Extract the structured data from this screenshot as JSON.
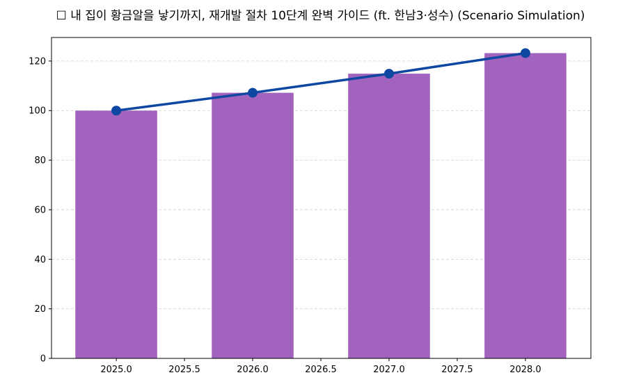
{
  "chart_data": {
    "type": "bar",
    "title": "☐ 내 집이 황금알을 낳기까지, 재개발 절차 10단계 완벽 가이드 (ft. 한남3·성수) (Scenario Simulation)",
    "xlabel": "",
    "ylabel": "",
    "x": [
      2025,
      2026,
      2027,
      2028
    ],
    "series": [
      {
        "type": "bar",
        "values": [
          100,
          107.2,
          114.9,
          123.2
        ],
        "color": "#a163bd"
      },
      {
        "type": "line",
        "values": [
          100,
          107.2,
          114.9,
          123.2
        ],
        "color": "#0d47a1",
        "marker": "circle"
      }
    ],
    "xlim": [
      2024.525,
      2028.48
    ],
    "ylim": [
      0,
      129.5
    ],
    "xticks": [
      "2025.0",
      "2025.5",
      "2026.0",
      "2026.5",
      "2027.0",
      "2027.5",
      "2028.0"
    ],
    "xtick_values": [
      2025,
      2025.5,
      2026,
      2026.5,
      2027,
      2027.5,
      2028
    ],
    "yticks": [
      0,
      20,
      40,
      60,
      80,
      100,
      120
    ],
    "bar_width_years": 0.6,
    "grid": "y dashed",
    "legend": "none"
  }
}
